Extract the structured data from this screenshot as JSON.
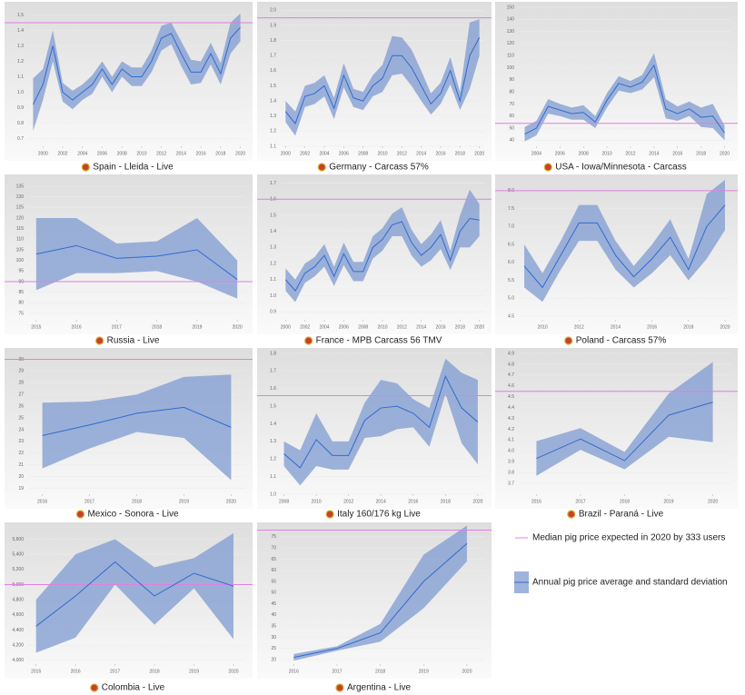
{
  "legend": {
    "median": {
      "label": "Median pig price expected in 2020 by 333 users",
      "color": "#e07fe0"
    },
    "band": {
      "label": "Annual pig price average and standard deviation",
      "color": "#7f9bd0",
      "line_color": "#2f6bd0"
    }
  },
  "chart_data": [
    {
      "type": "line",
      "title": "Spain - Lleida - Live",
      "x": [
        1999,
        2000,
        2001,
        2002,
        2003,
        2004,
        2005,
        2006,
        2007,
        2008,
        2009,
        2010,
        2011,
        2012,
        2013,
        2014,
        2015,
        2016,
        2017,
        2018,
        2019,
        2020
      ],
      "values": [
        0.92,
        1.05,
        1.3,
        1.0,
        0.95,
        1.0,
        1.05,
        1.15,
        1.05,
        1.15,
        1.1,
        1.1,
        1.2,
        1.35,
        1.38,
        1.25,
        1.13,
        1.13,
        1.25,
        1.12,
        1.35,
        1.42
      ],
      "std": [
        0.17,
        0.1,
        0.1,
        0.06,
        0.06,
        0.05,
        0.06,
        0.05,
        0.05,
        0.05,
        0.06,
        0.06,
        0.07,
        0.08,
        0.07,
        0.08,
        0.08,
        0.07,
        0.07,
        0.07,
        0.1,
        0.09
      ],
      "median": 1.45,
      "xlim": [
        1998.5,
        2020.5
      ],
      "ylim": [
        0.65,
        1.55
      ],
      "xticks": [
        2000,
        2002,
        2004,
        2006,
        2008,
        2010,
        2012,
        2014,
        2016,
        2018,
        2020
      ],
      "yticks": [
        0.7,
        0.8,
        0.9,
        {
          "value": 1,
          "label": "1.0"
        },
        1.1,
        1.2,
        1.3,
        1.4,
        1.5
      ]
    },
    {
      "type": "line",
      "title": "Germany - Carcass 57%",
      "x": [
        2000,
        2001,
        2002,
        2003,
        2004,
        2005,
        2006,
        2007,
        2008,
        2009,
        2010,
        2011,
        2012,
        2013,
        2014,
        2015,
        2016,
        2017,
        2018,
        2019,
        2020
      ],
      "values": [
        1.33,
        1.25,
        1.43,
        1.45,
        1.5,
        1.35,
        1.57,
        1.42,
        1.4,
        1.5,
        1.55,
        1.7,
        1.7,
        1.62,
        1.5,
        1.38,
        1.45,
        1.6,
        1.4,
        1.7,
        1.82
      ],
      "std": [
        0.07,
        0.08,
        0.07,
        0.07,
        0.07,
        0.07,
        0.08,
        0.06,
        0.06,
        0.07,
        0.09,
        0.13,
        0.12,
        0.12,
        0.1,
        0.07,
        0.07,
        0.09,
        0.06,
        0.22,
        0.12
      ],
      "median": 1.95,
      "xlim": [
        1999.5,
        2020.5
      ],
      "ylim": [
        1.1,
        2.02
      ],
      "xticks": [
        2000,
        2002,
        2004,
        2006,
        2008,
        2010,
        2012,
        2014,
        2016,
        2018,
        2020
      ],
      "yticks": [
        1.1,
        1.2,
        1.3,
        1.4,
        1.5,
        1.6,
        1.7,
        1.8,
        1.9,
        {
          "value": 2,
          "label": "2.0"
        }
      ]
    },
    {
      "type": "line",
      "title": "USA - Iowa/Minnesota - Carcass",
      "x": [
        2003,
        2004,
        2005,
        2006,
        2007,
        2008,
        2009,
        2010,
        2011,
        2012,
        2013,
        2014,
        2015,
        2016,
        2017,
        2018,
        2019,
        2020
      ],
      "values": [
        45,
        50,
        68,
        65,
        62,
        63,
        55,
        73,
        87,
        84,
        88,
        102,
        66,
        62,
        66,
        59,
        60,
        46
      ],
      "std": [
        6,
        6,
        6,
        5,
        5,
        6,
        5,
        6,
        6,
        5,
        6,
        10,
        8,
        6,
        6,
        8,
        10,
        6
      ],
      "median": 54,
      "xlim": [
        2002.5,
        2020.5
      ],
      "ylim": [
        35,
        150
      ],
      "xticks": [
        2004,
        2006,
        2008,
        2010,
        2012,
        2014,
        2016,
        2018,
        2020
      ],
      "yticks": [
        40,
        50,
        60,
        70,
        80,
        90,
        100,
        110,
        120,
        130,
        140,
        150
      ]
    },
    {
      "type": "line",
      "title": "Russia - Live",
      "x": [
        2015,
        2016,
        2017,
        2018,
        2019,
        2020
      ],
      "values": [
        103,
        107,
        101,
        102,
        105,
        91
      ],
      "std": [
        17,
        13,
        7,
        7,
        15,
        9
      ],
      "median": 90,
      "xlim": [
        2014.8,
        2020.2
      ],
      "ylim": [
        72,
        138
      ],
      "xticks": [
        2015,
        2016,
        2017,
        2018,
        2019,
        2020
      ],
      "yticks": [
        75,
        80,
        85,
        90,
        95,
        100,
        105,
        110,
        115,
        120,
        125,
        130,
        135
      ]
    },
    {
      "type": "line",
      "title": "France - MPB Carcass 56 TMV",
      "x": [
        2000,
        2001,
        2002,
        2003,
        2004,
        2005,
        2006,
        2007,
        2008,
        2009,
        2010,
        2011,
        2012,
        2013,
        2014,
        2015,
        2016,
        2017,
        2018,
        2019,
        2020
      ],
      "values": [
        1.1,
        1.03,
        1.14,
        1.18,
        1.25,
        1.12,
        1.26,
        1.15,
        1.15,
        1.3,
        1.35,
        1.44,
        1.46,
        1.33,
        1.25,
        1.3,
        1.38,
        1.22,
        1.4,
        1.48,
        1.47
      ],
      "std": [
        0.07,
        0.07,
        0.06,
        0.06,
        0.07,
        0.06,
        0.07,
        0.06,
        0.06,
        0.07,
        0.07,
        0.07,
        0.09,
        0.08,
        0.07,
        0.08,
        0.09,
        0.06,
        0.1,
        0.18,
        0.1
      ],
      "median": 1.6,
      "xlim": [
        1999.5,
        2020.5
      ],
      "ylim": [
        0.85,
        1.72
      ],
      "xticks": [
        2000,
        2002,
        2004,
        2006,
        2008,
        2010,
        2012,
        2014,
        2016,
        2018,
        2020
      ],
      "yticks": [
        0.9,
        {
          "value": 1,
          "label": "1.0"
        },
        1.1,
        1.2,
        1.3,
        1.4,
        1.5,
        1.6,
        1.7
      ]
    },
    {
      "type": "line",
      "title": "Poland - Carcass 57%",
      "x": [
        2009,
        2010,
        2011,
        2012,
        2013,
        2014,
        2015,
        2016,
        2017,
        2018,
        2019,
        2020
      ],
      "values": [
        5.9,
        5.3,
        6.2,
        7.1,
        7.1,
        6.2,
        5.6,
        6.1,
        6.7,
        5.8,
        7.0,
        7.6
      ],
      "std": [
        0.6,
        0.4,
        0.4,
        0.5,
        0.5,
        0.4,
        0.3,
        0.4,
        0.5,
        0.3,
        0.9,
        0.7
      ],
      "median": 8,
      "xlim": [
        2008.7,
        2020.3
      ],
      "ylim": [
        4.4,
        8.3
      ],
      "xticks": [
        2010,
        2012,
        2014,
        2016,
        2018,
        2020
      ],
      "yticks": [
        4.5,
        {
          "value": 5,
          "label": "5.0"
        },
        5.5,
        {
          "value": 6,
          "label": "6.0"
        },
        6.5,
        {
          "value": 7,
          "label": "7.0"
        },
        7.5,
        {
          "value": 8,
          "label": "8.0"
        }
      ]
    },
    {
      "type": "line",
      "title": "Mexico - Sonora - Live",
      "x": [
        2016,
        2017,
        2018,
        2019,
        2020
      ],
      "values": [
        23.5,
        24.4,
        25.4,
        25.9,
        24.2
      ],
      "std": [
        2.8,
        2.0,
        1.6,
        2.6,
        4.5
      ],
      "median": 30,
      "xlim": [
        2015.7,
        2020.3
      ],
      "ylim": [
        18.5,
        30.5
      ],
      "xticks": [
        2016,
        2017,
        2018,
        2019,
        2020
      ],
      "yticks": [
        19,
        20,
        21,
        22,
        23,
        24,
        25,
        26,
        27,
        28,
        29,
        30
      ]
    },
    {
      "type": "line",
      "title": "Italy 160/176 kg Live",
      "x": [
        2008,
        2009,
        2010,
        2011,
        2012,
        2013,
        2014,
        2015,
        2016,
        2017,
        2018,
        2019,
        2020
      ],
      "values": [
        1.23,
        1.15,
        1.31,
        1.22,
        1.22,
        1.42,
        1.49,
        1.5,
        1.46,
        1.38,
        1.67,
        1.49,
        1.41
      ],
      "std": [
        0.07,
        0.1,
        0.15,
        0.08,
        0.08,
        0.1,
        0.16,
        0.13,
        0.08,
        0.11,
        0.1,
        0.2,
        0.24
      ],
      "median": 1.56,
      "xlim": [
        2007.8,
        2020.4
      ],
      "ylim": [
        1.0,
        1.8
      ],
      "xticks": [
        2008,
        2010,
        2012,
        2014,
        2016,
        2018,
        2020
      ],
      "yticks": [
        {
          "value": 1,
          "label": "1.0"
        },
        1.1,
        1.2,
        1.3,
        1.4,
        1.5,
        1.6,
        1.7,
        1.8
      ]
    },
    {
      "type": "line",
      "title": "Brazil - Paraná - Live",
      "x": [
        2016,
        2017,
        2018,
        2019,
        2020
      ],
      "values": [
        3.93,
        4.11,
        3.91,
        4.33,
        4.45
      ],
      "std": [
        0.16,
        0.1,
        0.08,
        0.2,
        0.37
      ],
      "median": 4.55,
      "xlim": [
        2015.6,
        2020.4
      ],
      "ylim": [
        3.6,
        4.9
      ],
      "xticks": [
        2016,
        2017,
        2018,
        2019,
        2020
      ],
      "yticks": [
        3.7,
        3.8,
        3.9,
        {
          "value": 4,
          "label": "4.0"
        },
        4.1,
        4.2,
        4.3,
        4.4,
        4.5,
        4.6,
        4.7,
        4.8,
        4.9
      ]
    },
    {
      "type": "line",
      "title": "Colombia - Live",
      "x": [
        2015,
        2016,
        2017,
        2018,
        2019,
        2020
      ],
      "values": [
        4450,
        4850,
        5300,
        4850,
        5150,
        4980
      ],
      "std": [
        350,
        550,
        300,
        380,
        200,
        700
      ],
      "median": 5000,
      "xlim": [
        2014.8,
        2020.3
      ],
      "ylim": [
        3950,
        5750
      ],
      "xticks": [
        2015,
        2016,
        2017,
        2018,
        2019,
        2020
      ],
      "yticks": [
        {
          "value": 4000,
          "label": "4,000"
        },
        {
          "value": 4200,
          "label": "4,200"
        },
        {
          "value": 4400,
          "label": "4,400"
        },
        {
          "value": 4600,
          "label": "4,600"
        },
        {
          "value": 4800,
          "label": "4,800"
        },
        {
          "value": 5000,
          "label": "5,000"
        },
        {
          "value": 5200,
          "label": "5,200"
        },
        {
          "value": 5400,
          "label": "5,400"
        },
        {
          "value": 5600,
          "label": "5,600"
        }
      ]
    },
    {
      "type": "line",
      "title": "Argentina - Live",
      "x": [
        2016,
        2017,
        2018,
        2019,
        2020
      ],
      "values": [
        21,
        25,
        32,
        55,
        72
      ],
      "std": [
        1.5,
        1,
        4,
        12,
        8
      ],
      "median": 78,
      "xlim": [
        2015.7,
        2020.4
      ],
      "ylim": [
        18,
        79
      ],
      "xticks": [
        2016,
        2017,
        2018,
        2019,
        2020
      ],
      "yticks": [
        20,
        25,
        30,
        35,
        40,
        45,
        50,
        55,
        60,
        65,
        70,
        75
      ]
    }
  ]
}
